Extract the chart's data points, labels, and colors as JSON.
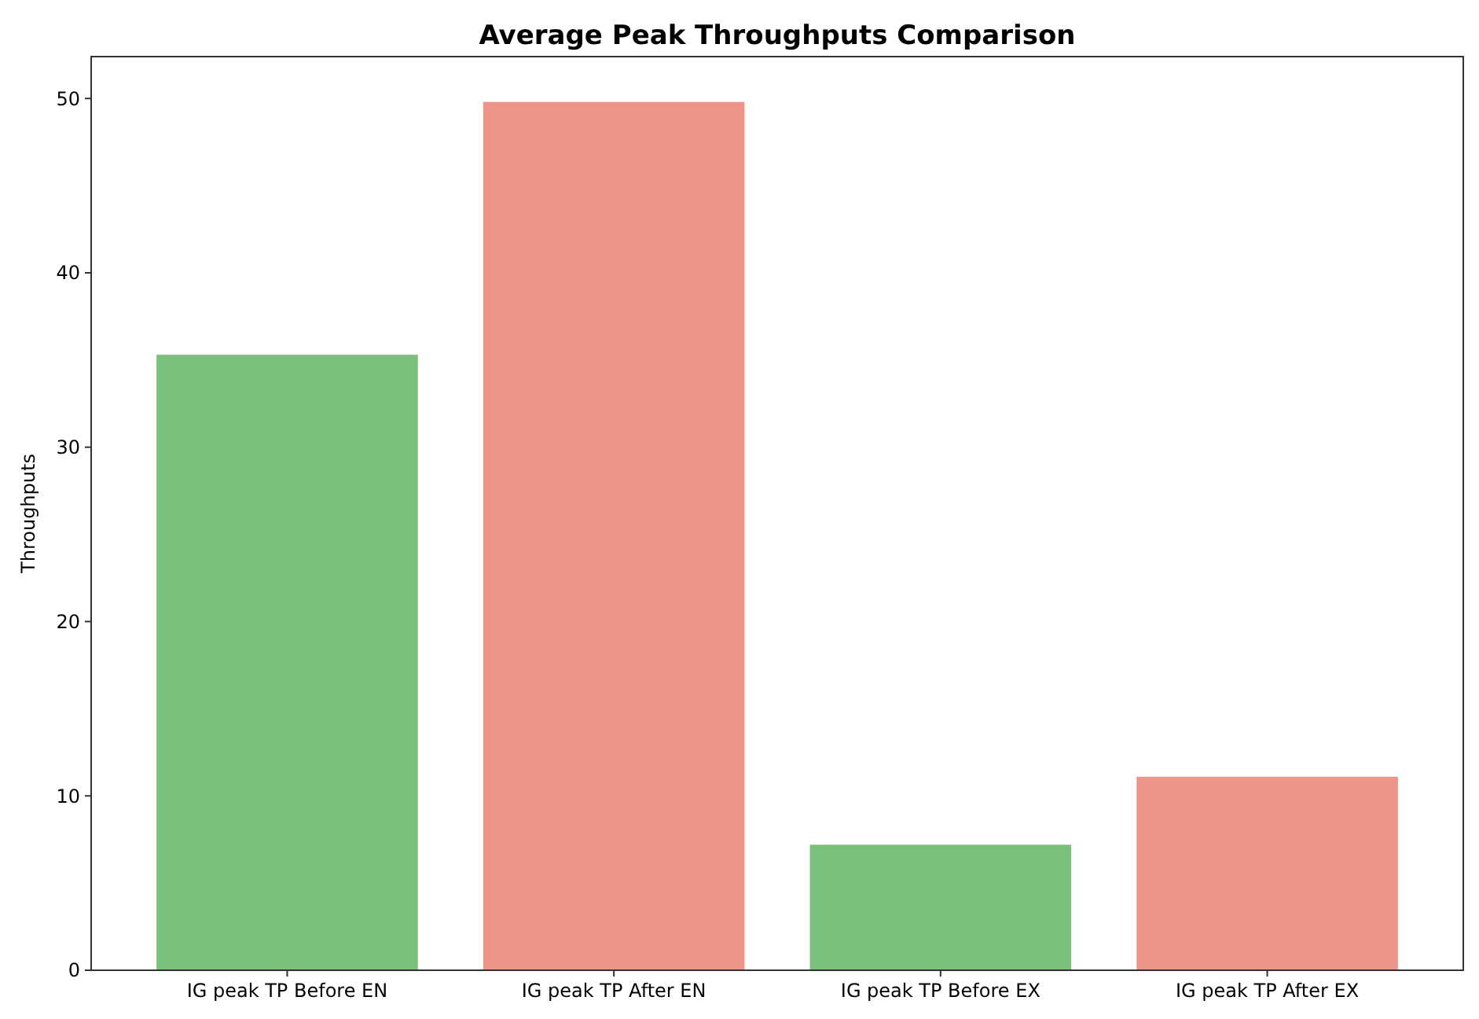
{
  "chart_data": {
    "type": "bar",
    "title": "Average Peak Throughputs Comparison",
    "ylabel": "Throughputs",
    "categories": [
      "IG peak TP Before EN",
      "IG peak TP After EN",
      "IG peak TP Before EX",
      "IG peak TP After EX"
    ],
    "values": [
      35.3,
      49.8,
      7.2,
      11.1
    ],
    "colors": [
      "#7abf7a",
      "#ee958a",
      "#7abf7a",
      "#ee958a"
    ],
    "ylim": [
      0,
      52.4
    ],
    "yticks": [
      0,
      10,
      20,
      30,
      40,
      50
    ]
  }
}
